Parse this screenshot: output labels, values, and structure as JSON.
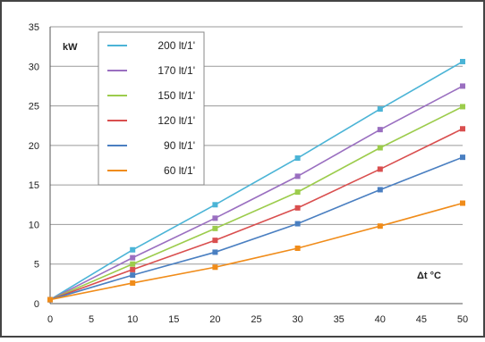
{
  "chart_data": {
    "type": "line",
    "title": "",
    "ylabel": "kW",
    "xlabel": "Δt °C",
    "x": [
      0,
      10,
      20,
      30,
      40,
      50
    ],
    "xticks": [
      0,
      5,
      10,
      15,
      20,
      25,
      30,
      35,
      40,
      45,
      50
    ],
    "yticks": [
      0,
      5,
      10,
      15,
      20,
      25,
      30,
      35
    ],
    "xlim": [
      0,
      50
    ],
    "ylim": [
      0,
      35
    ],
    "grid": "horizontal",
    "legend_position": "top-left",
    "series": [
      {
        "name": "200 lt/1'",
        "color": "#4bb4d6",
        "values": [
          0.5,
          6.8,
          12.5,
          18.4,
          24.6,
          30.6
        ]
      },
      {
        "name": "170 lt/1'",
        "color": "#9a6fc0",
        "values": [
          0.5,
          5.8,
          10.8,
          16.1,
          22.0,
          27.5
        ]
      },
      {
        "name": "150 lt/1'",
        "color": "#9ccc4c",
        "values": [
          0.5,
          5.0,
          9.5,
          14.1,
          19.7,
          24.9
        ]
      },
      {
        "name": "120 lt/1'",
        "color": "#d94f4f",
        "values": [
          0.5,
          4.3,
          8.0,
          12.1,
          17.0,
          22.1
        ]
      },
      {
        "name": "90 lt/1'",
        "color": "#4a7fc1",
        "values": [
          0.5,
          3.6,
          6.5,
          10.1,
          14.4,
          18.5
        ]
      },
      {
        "name": "60 lt/1'",
        "color": "#f08c1a",
        "values": [
          0.5,
          2.6,
          4.6,
          7.0,
          9.8,
          12.7
        ]
      }
    ]
  }
}
